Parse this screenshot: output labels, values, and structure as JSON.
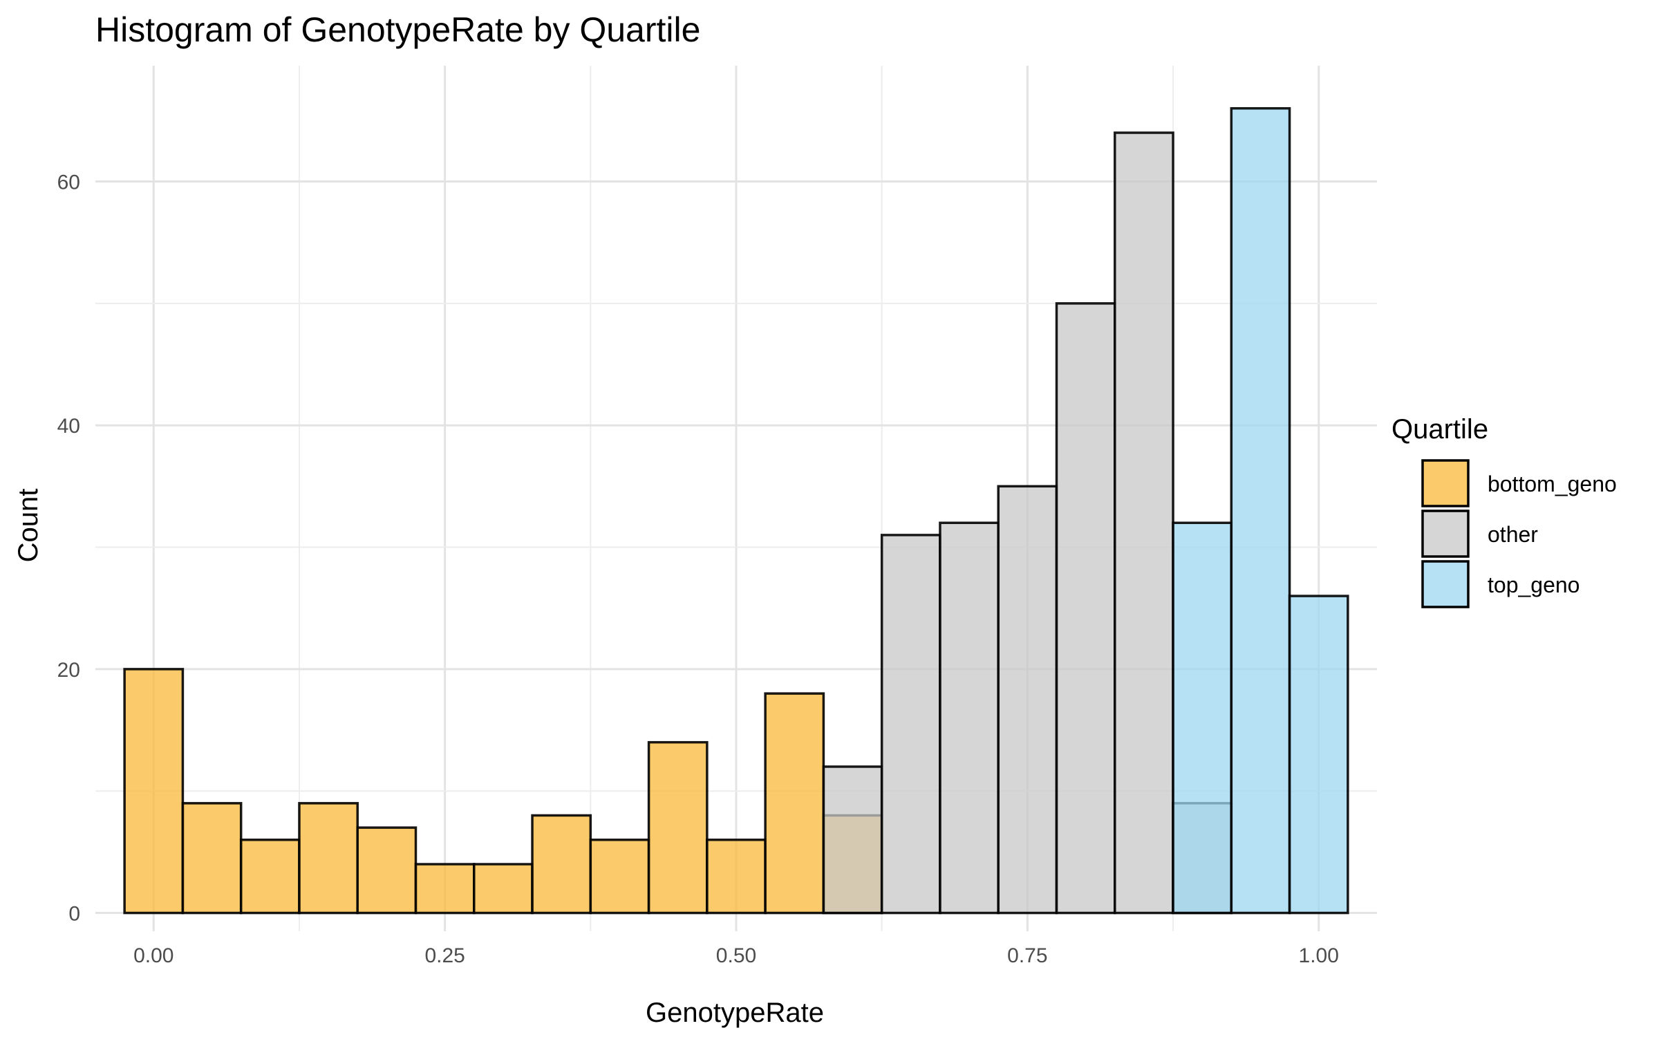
{
  "chart_data": {
    "type": "bar",
    "subtype": "overlapping-histogram",
    "title": "Histogram of GenotypeRate by Quartile",
    "xlabel": "GenotypeRate",
    "ylabel": "Count",
    "xlim": [
      -0.05,
      1.05
    ],
    "ylim": [
      -1.5,
      69.5
    ],
    "bin_width": 0.05,
    "x_ticks": [
      0.0,
      0.25,
      0.5,
      0.75,
      1.0
    ],
    "x_tick_labels": [
      "0.00",
      "0.25",
      "0.50",
      "0.75",
      "1.00"
    ],
    "y_ticks": [
      0,
      20,
      40,
      60
    ],
    "y_tick_labels": [
      "0",
      "20",
      "40",
      "60"
    ],
    "grid": true,
    "legend": {
      "title": "Quartile",
      "position": "right"
    },
    "series": [
      {
        "name": "bottom_geno",
        "color": "#F9B93A",
        "bins": [
          {
            "x": 0.0,
            "count": 20
          },
          {
            "x": 0.05,
            "count": 9
          },
          {
            "x": 0.1,
            "count": 6
          },
          {
            "x": 0.15,
            "count": 9
          },
          {
            "x": 0.2,
            "count": 7
          },
          {
            "x": 0.25,
            "count": 4
          },
          {
            "x": 0.3,
            "count": 4
          },
          {
            "x": 0.35,
            "count": 8
          },
          {
            "x": 0.4,
            "count": 6
          },
          {
            "x": 0.45,
            "count": 14
          },
          {
            "x": 0.5,
            "count": 6
          },
          {
            "x": 0.55,
            "count": 18
          },
          {
            "x": 0.6,
            "count": 8
          }
        ]
      },
      {
        "name": "other",
        "color": "#C8C8C8",
        "bins": [
          {
            "x": 0.6,
            "count": 12
          },
          {
            "x": 0.65,
            "count": 31
          },
          {
            "x": 0.7,
            "count": 32
          },
          {
            "x": 0.75,
            "count": 35
          },
          {
            "x": 0.8,
            "count": 50
          },
          {
            "x": 0.85,
            "count": 64
          },
          {
            "x": 0.9,
            "count": 9
          }
        ]
      },
      {
        "name": "top_geno",
        "color": "#9ED7F0",
        "bins": [
          {
            "x": 0.9,
            "count": 32
          },
          {
            "x": 0.95,
            "count": 66
          },
          {
            "x": 1.0,
            "count": 26
          }
        ]
      }
    ]
  }
}
